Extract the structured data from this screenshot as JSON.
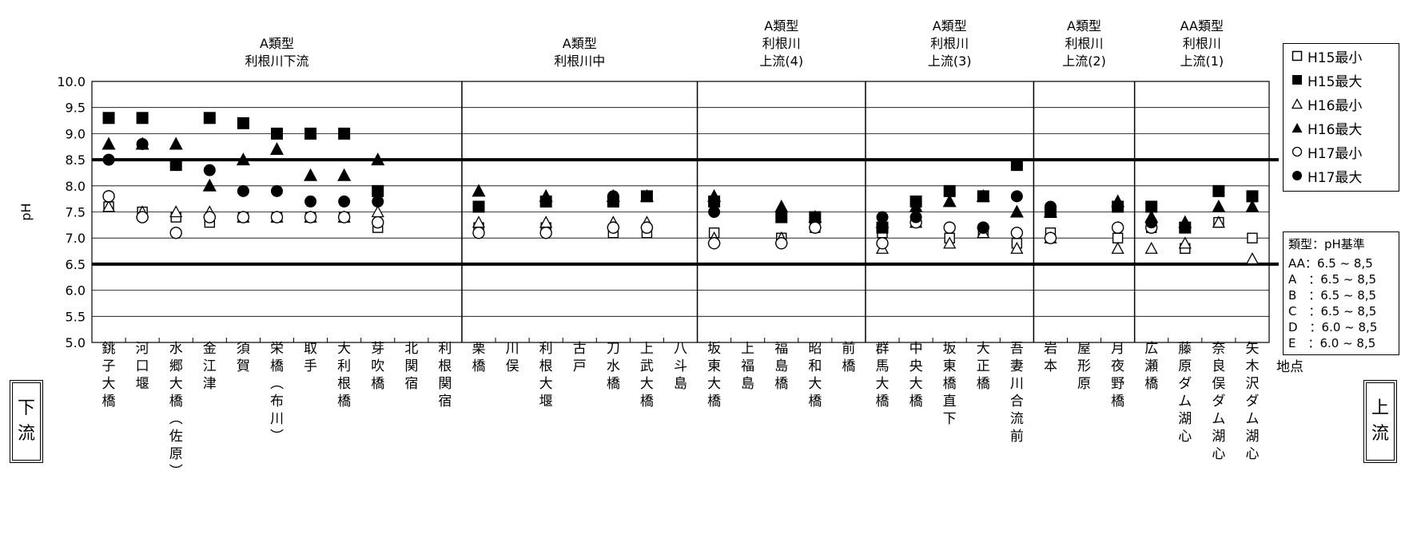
{
  "chart_data": {
    "type": "scatter",
    "ylabel": "pH",
    "xlabel": "地点",
    "ylim": [
      5.0,
      10.0
    ],
    "yticks": [
      "5.0",
      "5.5",
      "6.0",
      "6.5",
      "7.0",
      "7.5",
      "8.0",
      "8.5",
      "9.0",
      "9.5",
      "10.0"
    ],
    "standard_lines": [
      6.5,
      8.5
    ],
    "stations": [
      "銚子大橋",
      "河口堰",
      "水郷大橋（佐原）",
      "金江津",
      "須賀",
      "栄橋（布川）",
      "取手",
      "大利根橋",
      "芽吹橋",
      "北関宿",
      "利根関宿",
      "栗橋",
      "川俣",
      "利根大堰",
      "古戸",
      "刀水橋",
      "上武大橋",
      "八斗島",
      "坂東大橋",
      "上福島",
      "福島橋",
      "昭和大橋",
      "前橋",
      "群馬大橋",
      "中央大橋",
      "坂東橋直下",
      "大正橋",
      "吾妻川合流前",
      "岩本",
      "屋形原",
      "月夜野橋",
      "広瀬橋",
      "藤原ダム湖心",
      "奈良俣ダム湖心",
      "矢木沢ダム湖心"
    ],
    "sections": [
      {
        "label": [
          "A類型",
          "利根川下流"
        ]
      },
      {
        "label": [
          "A類型",
          "利根川中"
        ]
      },
      {
        "label": [
          "A類型",
          "利根川",
          "上流(4)"
        ]
      },
      {
        "label": [
          "A類型",
          "利根川",
          "上流(3)"
        ]
      },
      {
        "label": [
          "A類型",
          "利根川",
          "上流(2)"
        ]
      },
      {
        "label": [
          "AA類型",
          "利根川",
          "上流(1)"
        ]
      }
    ],
    "series": [
      {
        "name": "H15最小",
        "marker": "square-open",
        "values": [
          7.6,
          7.5,
          7.4,
          7.3,
          7.4,
          7.4,
          7.4,
          7.4,
          7.2,
          null,
          null,
          7.2,
          null,
          7.2,
          null,
          7.1,
          7.1,
          null,
          7.1,
          null,
          7.0,
          7.2,
          null,
          7.1,
          7.3,
          7.0,
          7.1,
          6.9,
          7.1,
          null,
          7.0,
          7.2,
          6.8,
          7.3,
          7.0
        ]
      },
      {
        "name": "H15最大",
        "marker": "square-filled",
        "values": [
          9.3,
          9.3,
          8.4,
          9.3,
          9.2,
          9.0,
          9.0,
          9.0,
          7.9,
          null,
          null,
          7.6,
          null,
          7.7,
          null,
          7.7,
          7.8,
          null,
          7.7,
          null,
          7.4,
          7.4,
          null,
          7.2,
          7.7,
          7.9,
          7.8,
          8.4,
          7.5,
          null,
          7.6,
          7.6,
          7.2,
          7.9,
          7.8
        ]
      },
      {
        "name": "H16最小",
        "marker": "triangle-open",
        "values": [
          7.6,
          7.5,
          7.5,
          7.5,
          7.4,
          7.4,
          7.4,
          7.4,
          7.5,
          null,
          null,
          7.3,
          null,
          7.3,
          null,
          7.3,
          7.3,
          null,
          7.0,
          null,
          7.0,
          7.3,
          null,
          6.8,
          7.3,
          6.9,
          7.1,
          6.8,
          7.0,
          null,
          6.8,
          6.8,
          6.9,
          7.3,
          6.6
        ]
      },
      {
        "name": "H16最大",
        "marker": "triangle-filled",
        "values": [
          8.8,
          8.8,
          8.8,
          8.0,
          8.5,
          8.7,
          8.2,
          8.2,
          8.5,
          null,
          null,
          7.9,
          null,
          7.8,
          null,
          7.8,
          7.8,
          null,
          7.8,
          null,
          7.6,
          7.4,
          null,
          7.3,
          7.6,
          7.7,
          7.8,
          7.5,
          7.5,
          null,
          7.7,
          7.4,
          7.3,
          7.6,
          7.6
        ]
      },
      {
        "name": "H17最小",
        "marker": "circle-open",
        "values": [
          7.8,
          7.4,
          7.1,
          7.4,
          7.4,
          7.4,
          7.4,
          7.4,
          7.3,
          null,
          null,
          7.1,
          null,
          7.1,
          null,
          7.2,
          7.2,
          null,
          6.9,
          null,
          6.9,
          7.2,
          null,
          6.9,
          7.3,
          7.2,
          7.2,
          7.1,
          7.0,
          null,
          7.2,
          7.2,
          null,
          null,
          null
        ]
      },
      {
        "name": "H17最大",
        "marker": "circle-filled",
        "values": [
          8.5,
          8.8,
          null,
          8.3,
          7.9,
          7.9,
          7.7,
          7.7,
          7.7,
          null,
          null,
          null,
          null,
          7.7,
          null,
          7.8,
          null,
          null,
          7.5,
          null,
          null,
          null,
          null,
          7.4,
          7.4,
          null,
          7.2,
          7.8,
          7.6,
          null,
          null,
          7.3,
          null,
          null,
          null
        ]
      }
    ]
  },
  "legend": {
    "items": [
      "H15最小",
      "H15最大",
      "H16最小",
      "H16最大",
      "H17最小",
      "H17最大"
    ]
  },
  "standards": {
    "title": "類型：pH基準",
    "rows": [
      "AA：6.5 ~ 8,5",
      "A　：6.5 ~ 8,5",
      "B　：6.5 ~ 8,5",
      "C　：6.5 ~ 8,5",
      "D　：6.0 ~ 8,5",
      "E　：6.0 ~ 8,5"
    ]
  },
  "direction": {
    "downstream": "下流",
    "upstream": "上流"
  }
}
